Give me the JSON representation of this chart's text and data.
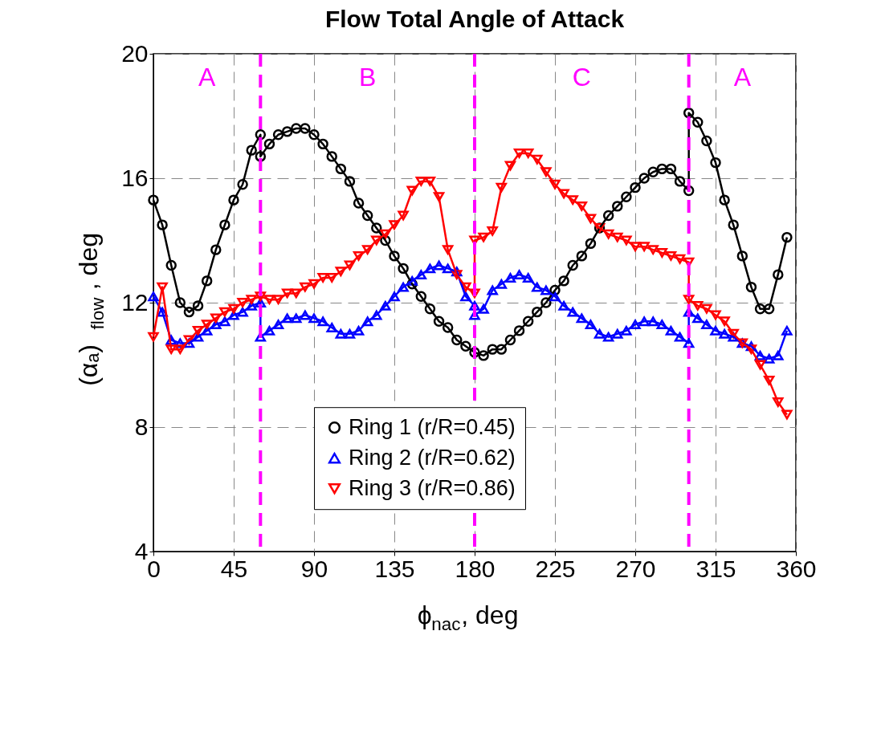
{
  "chart_data": {
    "type": "line",
    "title": "Flow Total Angle of Attack",
    "xlabel": "ϕ$_{nac}$, deg",
    "ylabel": "(αₐ)$_{flow}$, deg",
    "xlim": [
      0,
      360
    ],
    "xticks": [
      0,
      45,
      90,
      135,
      180,
      225,
      270,
      315,
      360
    ],
    "ylim": [
      4,
      20
    ],
    "yticks": [
      4,
      8,
      12,
      16,
      20
    ],
    "grid": true,
    "legend": "bottom",
    "line_style": "solid",
    "series": [
      {
        "name": "Ring 1 (r/R=0.45)",
        "color": "#000000",
        "marker": "circle",
        "x": [
          0,
          5,
          10,
          15,
          20,
          25,
          30,
          35,
          40,
          45,
          50,
          55,
          60,
          60,
          65,
          70,
          75,
          80,
          85,
          90,
          95,
          100,
          105,
          110,
          115,
          120,
          125,
          130,
          135,
          140,
          145,
          150,
          155,
          160,
          165,
          170,
          175,
          180,
          185,
          190,
          195,
          200,
          205,
          210,
          215,
          220,
          225,
          230,
          235,
          240,
          245,
          250,
          255,
          260,
          265,
          270,
          275,
          280,
          285,
          290,
          295,
          300,
          300,
          305,
          310,
          315,
          320,
          325,
          330,
          335,
          340,
          345,
          350,
          355
        ],
        "values": [
          15.3,
          14.5,
          13.2,
          12.0,
          11.7,
          11.9,
          12.7,
          13.7,
          14.5,
          15.3,
          15.8,
          16.9,
          17.4,
          16.7,
          17.1,
          17.4,
          17.5,
          17.6,
          17.6,
          17.4,
          17.1,
          16.7,
          16.3,
          15.9,
          15.2,
          14.8,
          14.4,
          14.0,
          13.5,
          13.1,
          12.6,
          12.2,
          11.8,
          11.4,
          11.2,
          10.8,
          10.6,
          10.4,
          10.3,
          10.5,
          10.5,
          10.8,
          11.1,
          11.4,
          11.7,
          12.0,
          12.4,
          12.7,
          13.2,
          13.5,
          13.9,
          14.4,
          14.8,
          15.1,
          15.4,
          15.7,
          16.0,
          16.2,
          16.3,
          16.3,
          15.9,
          15.6,
          18.1,
          17.8,
          17.2,
          16.5,
          15.3,
          14.5,
          13.5,
          12.5,
          11.8,
          11.8,
          12.9,
          14.1
        ]
      },
      {
        "name": "Ring 2 (r/R=0.62)",
        "color": "#0000ff",
        "marker": "triangle",
        "x": [
          0,
          5,
          10,
          15,
          20,
          25,
          30,
          35,
          40,
          45,
          50,
          55,
          60,
          60,
          65,
          70,
          75,
          80,
          85,
          90,
          95,
          100,
          105,
          110,
          115,
          120,
          125,
          130,
          135,
          140,
          145,
          150,
          155,
          160,
          165,
          170,
          175,
          180,
          180,
          185,
          190,
          195,
          200,
          205,
          210,
          215,
          220,
          225,
          230,
          235,
          240,
          245,
          250,
          255,
          260,
          265,
          270,
          275,
          280,
          285,
          290,
          295,
          300,
          300,
          305,
          310,
          315,
          320,
          325,
          330,
          335,
          340,
          345,
          350,
          355
        ],
        "values": [
          12.2,
          11.7,
          10.8,
          10.7,
          10.7,
          10.9,
          11.1,
          11.3,
          11.4,
          11.6,
          11.7,
          11.9,
          12.0,
          10.9,
          11.1,
          11.3,
          11.5,
          11.5,
          11.6,
          11.5,
          11.4,
          11.2,
          11.0,
          11.0,
          11.1,
          11.4,
          11.6,
          11.9,
          12.2,
          12.5,
          12.7,
          12.9,
          13.1,
          13.2,
          13.1,
          13.0,
          12.2,
          11.9,
          11.6,
          11.8,
          12.4,
          12.6,
          12.8,
          12.9,
          12.8,
          12.5,
          12.4,
          12.2,
          11.9,
          11.7,
          11.5,
          11.3,
          11.0,
          10.9,
          11.0,
          11.1,
          11.3,
          11.4,
          11.4,
          11.3,
          11.1,
          10.9,
          10.7,
          11.7,
          11.5,
          11.3,
          11.1,
          11.0,
          10.9,
          10.7,
          10.6,
          10.3,
          10.2,
          10.3,
          11.1
        ]
      },
      {
        "name": "Ring 3 (r/R=0.86)",
        "color": "#ff0000",
        "marker": "triangle-down",
        "x": [
          0,
          5,
          10,
          15,
          20,
          25,
          30,
          35,
          40,
          45,
          50,
          55,
          60,
          65,
          70,
          75,
          80,
          85,
          90,
          95,
          100,
          105,
          110,
          115,
          120,
          125,
          130,
          135,
          140,
          145,
          150,
          155,
          160,
          165,
          170,
          175,
          180,
          180,
          185,
          190,
          195,
          200,
          205,
          210,
          215,
          220,
          225,
          230,
          235,
          240,
          245,
          250,
          255,
          260,
          265,
          270,
          275,
          280,
          285,
          290,
          295,
          300,
          300,
          305,
          310,
          315,
          320,
          325,
          330,
          335,
          340,
          345,
          350,
          355
        ],
        "values": [
          10.9,
          12.5,
          10.5,
          10.5,
          10.8,
          11.1,
          11.3,
          11.5,
          11.7,
          11.8,
          12.0,
          12.1,
          12.2,
          12.1,
          12.1,
          12.3,
          12.3,
          12.5,
          12.6,
          12.8,
          12.8,
          13.0,
          13.2,
          13.5,
          13.7,
          14.0,
          14.2,
          14.5,
          14.8,
          15.6,
          15.9,
          15.9,
          15.4,
          13.7,
          12.9,
          12.5,
          12.3,
          14.0,
          14.1,
          14.3,
          15.7,
          16.4,
          16.8,
          16.8,
          16.6,
          16.2,
          15.8,
          15.5,
          15.3,
          15.1,
          14.7,
          14.4,
          14.2,
          14.1,
          14.0,
          13.8,
          13.8,
          13.7,
          13.6,
          13.5,
          13.4,
          13.3,
          12.1,
          11.9,
          11.8,
          11.6,
          11.4,
          11.0,
          10.7,
          10.5,
          10.0,
          9.5,
          8.8,
          8.4
        ]
      }
    ],
    "ref_lines": [
      {
        "axis": "x",
        "value": 60,
        "label": null,
        "color": "#ff00ff",
        "line_style": "dashed"
      },
      {
        "axis": "x",
        "value": 180,
        "label": null,
        "color": "#ff00ff",
        "line_style": "dashed"
      },
      {
        "axis": "x",
        "value": 300,
        "label": null,
        "color": "#ff00ff",
        "line_style": "dashed"
      }
    ],
    "annotations": [
      "A",
      "B",
      "C",
      "A"
    ]
  }
}
